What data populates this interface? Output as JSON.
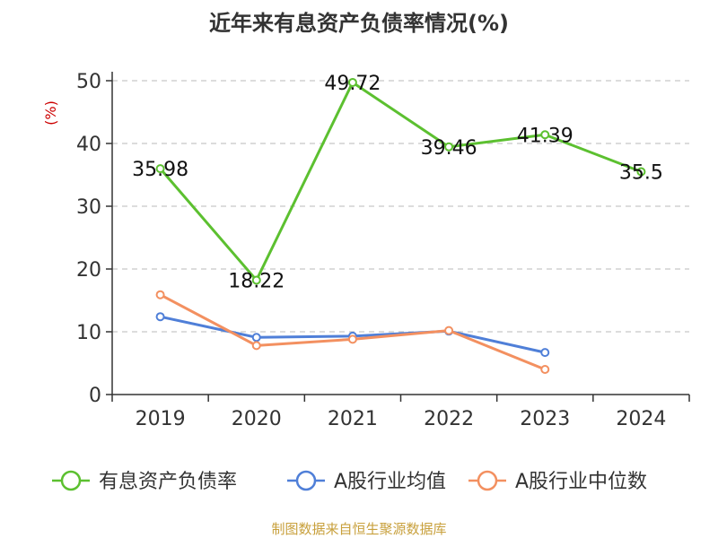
{
  "chart_data": {
    "type": "line",
    "title": "近年来有息资产负债率情况(%)",
    "ylabel": "(%)",
    "categories": [
      "2019",
      "2020",
      "2021",
      "2022",
      "2023",
      "2024"
    ],
    "ylim": [
      0,
      50
    ],
    "yticks": [
      0,
      10,
      20,
      30,
      40,
      50
    ],
    "grid": true,
    "legend_position": "bottom",
    "series": [
      {
        "name": "有息资产负债率",
        "color": "#5cc030",
        "values": [
          35.98,
          18.22,
          49.72,
          39.46,
          41.39,
          35.5
        ],
        "labels": [
          "35.98",
          "18.22",
          "49.72",
          "39.46",
          "41.39",
          "35.5"
        ]
      },
      {
        "name": "A股行业均值",
        "color": "#4f7fd8",
        "values": [
          12.4,
          9.1,
          9.3,
          10.1,
          6.7,
          null
        ]
      },
      {
        "name": "A股行业中位数",
        "color": "#f39060",
        "values": [
          15.9,
          7.8,
          8.8,
          10.2,
          4.0,
          null
        ]
      }
    ]
  },
  "source": "制图数据来自恒生聚源数据库"
}
